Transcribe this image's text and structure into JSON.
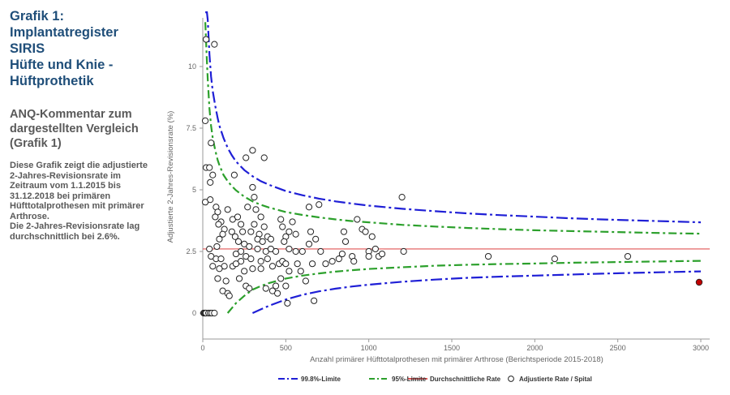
{
  "left_panel": {
    "title_lines": [
      "Grafik 1:",
      "Implantatregister SIRIS",
      "Hüfte und Knie -",
      "Hüftprothetik"
    ],
    "subtitle_lines": [
      "ANQ-Kommentar zum",
      "dargestellten Vergleich",
      "(Grafik 1)"
    ],
    "description_lines": [
      "Diese Grafik zeigt die adjustierte",
      "2-Jahres-Revisionsrate im",
      "Zeitraum vom 1.1.2015 bis",
      "31.12.2018 bei primären",
      "Hüfttotalprothesen mit primärer",
      "Arthrose.",
      "Die 2-Jahres-Revisionsrate lag",
      "durchschnittlich bei 2.6%."
    ]
  },
  "chart_data": {
    "type": "scatter",
    "xlabel": "Anzahl primärer Hüfttotalprothesen mit primärer Arthrose (Berichtsperiode 2015-2018)",
    "ylabel": "Adjustierte 2-Jahres-Revisionsrate (%)",
    "xlim": [
      0,
      3050
    ],
    "ylim": [
      -1,
      12.2
    ],
    "x_ticks": [
      0,
      500,
      1000,
      1500,
      2000,
      2500,
      3000
    ],
    "x_tick_labels": [
      "0",
      "500",
      "1000",
      "1500",
      "2000",
      "2500",
      "3000"
    ],
    "y_ticks": [
      0,
      2.5,
      5,
      7.5,
      10
    ],
    "y_tick_labels": [
      "0",
      "2.5",
      "5",
      "7.5",
      "10"
    ],
    "grid": false,
    "legend_position": "bottom",
    "average_rate": 2.6,
    "limits": {
      "n": [
        15,
        25,
        30,
        40,
        50,
        60,
        75,
        90,
        100,
        125,
        150,
        175,
        200,
        250,
        300,
        350,
        400,
        500,
        600,
        700,
        800,
        900,
        1000,
        1200,
        1400,
        1600,
        1800,
        2000,
        2200,
        2400,
        2600,
        2800,
        3000
      ],
      "upper_998": [
        12.2,
        12.2,
        11.9,
        10.5,
        9.6,
        9.0,
        8.4,
        7.9,
        7.6,
        7.1,
        6.7,
        6.4,
        6.15,
        5.8,
        5.55,
        5.35,
        5.2,
        4.95,
        4.78,
        4.64,
        4.53,
        4.44,
        4.36,
        4.23,
        4.13,
        4.04,
        3.97,
        3.91,
        3.85,
        3.8,
        3.76,
        3.72,
        3.68
      ],
      "lower_998": [
        null,
        null,
        null,
        null,
        null,
        null,
        null,
        null,
        null,
        null,
        null,
        null,
        null,
        null,
        0.0,
        0.15,
        0.3,
        0.55,
        0.74,
        0.88,
        0.99,
        1.08,
        1.15,
        1.27,
        1.36,
        1.43,
        1.48,
        1.52,
        1.56,
        1.6,
        1.63,
        1.66,
        1.69
      ],
      "upper_95": [
        11.8,
        10.2,
        9.5,
        8.3,
        7.6,
        7.1,
        6.6,
        6.2,
        6.0,
        5.6,
        5.35,
        5.15,
        4.98,
        4.72,
        4.53,
        4.39,
        4.28,
        4.1,
        3.98,
        3.88,
        3.8,
        3.73,
        3.68,
        3.58,
        3.51,
        3.45,
        3.4,
        3.36,
        3.33,
        3.3,
        3.27,
        3.24,
        3.22
      ],
      "lower_95": [
        null,
        null,
        null,
        null,
        null,
        null,
        null,
        null,
        null,
        null,
        0.0,
        0.2,
        0.4,
        0.7,
        0.95,
        1.1,
        1.22,
        1.4,
        1.52,
        1.61,
        1.68,
        1.74,
        1.79,
        1.86,
        1.92,
        1.96,
        1.99,
        2.01,
        2.04,
        2.06,
        2.08,
        2.1,
        2.12
      ]
    },
    "hospitals": [
      {
        "x": 5,
        "y": 0
      },
      {
        "x": 10,
        "y": 0
      },
      {
        "x": 15,
        "y": 0
      },
      {
        "x": 20,
        "y": 0
      },
      {
        "x": 35,
        "y": 0
      },
      {
        "x": 45,
        "y": 0
      },
      {
        "x": 55,
        "y": 0
      },
      {
        "x": 70,
        "y": 0
      },
      {
        "x": 20,
        "y": 11.1
      },
      {
        "x": 70,
        "y": 10.9
      },
      {
        "x": 15,
        "y": 7.8
      },
      {
        "x": 50,
        "y": 6.9
      },
      {
        "x": 20,
        "y": 5.9
      },
      {
        "x": 40,
        "y": 5.9
      },
      {
        "x": 60,
        "y": 5.6
      },
      {
        "x": 45,
        "y": 5.3
      },
      {
        "x": 15,
        "y": 4.5
      },
      {
        "x": 45,
        "y": 4.6
      },
      {
        "x": 80,
        "y": 4.3
      },
      {
        "x": 90,
        "y": 4.1
      },
      {
        "x": 75,
        "y": 3.9
      },
      {
        "x": 110,
        "y": 3.7
      },
      {
        "x": 95,
        "y": 3.6
      },
      {
        "x": 130,
        "y": 3.4
      },
      {
        "x": 120,
        "y": 3.2
      },
      {
        "x": 100,
        "y": 3.0
      },
      {
        "x": 85,
        "y": 2.7
      },
      {
        "x": 40,
        "y": 2.6
      },
      {
        "x": 50,
        "y": 2.3
      },
      {
        "x": 80,
        "y": 2.2
      },
      {
        "x": 110,
        "y": 2.2
      },
      {
        "x": 130,
        "y": 1.9
      },
      {
        "x": 60,
        "y": 1.9
      },
      {
        "x": 100,
        "y": 1.8
      },
      {
        "x": 90,
        "y": 1.4
      },
      {
        "x": 140,
        "y": 1.3
      },
      {
        "x": 120,
        "y": 0.9
      },
      {
        "x": 150,
        "y": 0.8
      },
      {
        "x": 160,
        "y": 0.7
      },
      {
        "x": 190,
        "y": 5.6
      },
      {
        "x": 150,
        "y": 4.2
      },
      {
        "x": 180,
        "y": 3.8
      },
      {
        "x": 210,
        "y": 3.9
      },
      {
        "x": 175,
        "y": 3.3
      },
      {
        "x": 195,
        "y": 3.1
      },
      {
        "x": 230,
        "y": 3.6
      },
      {
        "x": 240,
        "y": 3.3
      },
      {
        "x": 215,
        "y": 2.9
      },
      {
        "x": 250,
        "y": 2.8
      },
      {
        "x": 280,
        "y": 2.7
      },
      {
        "x": 230,
        "y": 2.5
      },
      {
        "x": 200,
        "y": 2.4
      },
      {
        "x": 260,
        "y": 2.3
      },
      {
        "x": 290,
        "y": 2.2
      },
      {
        "x": 230,
        "y": 2.1
      },
      {
        "x": 180,
        "y": 1.9
      },
      {
        "x": 200,
        "y": 2.0
      },
      {
        "x": 250,
        "y": 1.7
      },
      {
        "x": 300,
        "y": 1.8
      },
      {
        "x": 220,
        "y": 1.4
      },
      {
        "x": 260,
        "y": 1.1
      },
      {
        "x": 280,
        "y": 1.0
      },
      {
        "x": 260,
        "y": 6.3
      },
      {
        "x": 300,
        "y": 6.6
      },
      {
        "x": 370,
        "y": 6.3
      },
      {
        "x": 300,
        "y": 5.1
      },
      {
        "x": 310,
        "y": 4.7
      },
      {
        "x": 270,
        "y": 4.3
      },
      {
        "x": 320,
        "y": 4.2
      },
      {
        "x": 350,
        "y": 3.9
      },
      {
        "x": 310,
        "y": 3.6
      },
      {
        "x": 290,
        "y": 3.3
      },
      {
        "x": 340,
        "y": 3.2
      },
      {
        "x": 370,
        "y": 3.5
      },
      {
        "x": 330,
        "y": 3.0
      },
      {
        "x": 360,
        "y": 2.9
      },
      {
        "x": 390,
        "y": 3.1
      },
      {
        "x": 410,
        "y": 3.0
      },
      {
        "x": 330,
        "y": 2.6
      },
      {
        "x": 380,
        "y": 2.5
      },
      {
        "x": 410,
        "y": 2.6
      },
      {
        "x": 440,
        "y": 2.5
      },
      {
        "x": 350,
        "y": 2.1
      },
      {
        "x": 390,
        "y": 2.2
      },
      {
        "x": 420,
        "y": 1.9
      },
      {
        "x": 460,
        "y": 2.0
      },
      {
        "x": 350,
        "y": 1.8
      },
      {
        "x": 380,
        "y": 1.0
      },
      {
        "x": 420,
        "y": 0.9
      },
      {
        "x": 440,
        "y": 1.1
      },
      {
        "x": 470,
        "y": 3.8
      },
      {
        "x": 480,
        "y": 3.5
      },
      {
        "x": 500,
        "y": 3.1
      },
      {
        "x": 520,
        "y": 3.3
      },
      {
        "x": 490,
        "y": 2.9
      },
      {
        "x": 540,
        "y": 3.7
      },
      {
        "x": 560,
        "y": 3.2
      },
      {
        "x": 520,
        "y": 2.6
      },
      {
        "x": 560,
        "y": 2.5
      },
      {
        "x": 600,
        "y": 2.5
      },
      {
        "x": 480,
        "y": 2.1
      },
      {
        "x": 500,
        "y": 2.0
      },
      {
        "x": 570,
        "y": 2.0
      },
      {
        "x": 590,
        "y": 1.7
      },
      {
        "x": 520,
        "y": 1.7
      },
      {
        "x": 470,
        "y": 1.4
      },
      {
        "x": 500,
        "y": 1.1
      },
      {
        "x": 450,
        "y": 0.8
      },
      {
        "x": 510,
        "y": 0.4
      },
      {
        "x": 640,
        "y": 4.3
      },
      {
        "x": 700,
        "y": 4.4
      },
      {
        "x": 650,
        "y": 3.3
      },
      {
        "x": 680,
        "y": 3.0
      },
      {
        "x": 640,
        "y": 2.8
      },
      {
        "x": 710,
        "y": 2.5
      },
      {
        "x": 660,
        "y": 2.0
      },
      {
        "x": 740,
        "y": 2.0
      },
      {
        "x": 620,
        "y": 1.3
      },
      {
        "x": 670,
        "y": 0.5
      },
      {
        "x": 780,
        "y": 2.1
      },
      {
        "x": 820,
        "y": 2.2
      },
      {
        "x": 840,
        "y": 2.4
      },
      {
        "x": 850,
        "y": 3.3
      },
      {
        "x": 860,
        "y": 2.9
      },
      {
        "x": 900,
        "y": 2.3
      },
      {
        "x": 910,
        "y": 2.1
      },
      {
        "x": 930,
        "y": 3.8
      },
      {
        "x": 960,
        "y": 3.4
      },
      {
        "x": 980,
        "y": 3.3
      },
      {
        "x": 1000,
        "y": 2.5
      },
      {
        "x": 1020,
        "y": 3.1
      },
      {
        "x": 1040,
        "y": 2.6
      },
      {
        "x": 1060,
        "y": 2.3
      },
      {
        "x": 1080,
        "y": 2.4
      },
      {
        "x": 1000,
        "y": 2.3
      },
      {
        "x": 1200,
        "y": 4.7
      },
      {
        "x": 1210,
        "y": 2.5
      },
      {
        "x": 1720,
        "y": 2.3
      },
      {
        "x": 2120,
        "y": 2.2
      },
      {
        "x": 2560,
        "y": 2.3
      }
    ],
    "outlier": {
      "x": 2990,
      "y": 1.25
    },
    "legend": [
      {
        "key": "upper_998",
        "label": "99.8%-Limite",
        "color": "#1f1fd6"
      },
      {
        "key": "upper_95",
        "label": "95%-Limite",
        "color": "#2ca02c"
      },
      {
        "key": "average",
        "label": "Durchschnittliche Rate",
        "color": "#e05555"
      },
      {
        "key": "hospitals",
        "label": "Adjustierte Rate / Spital",
        "color": "#000000"
      }
    ],
    "outlier_color": "#c00000"
  }
}
